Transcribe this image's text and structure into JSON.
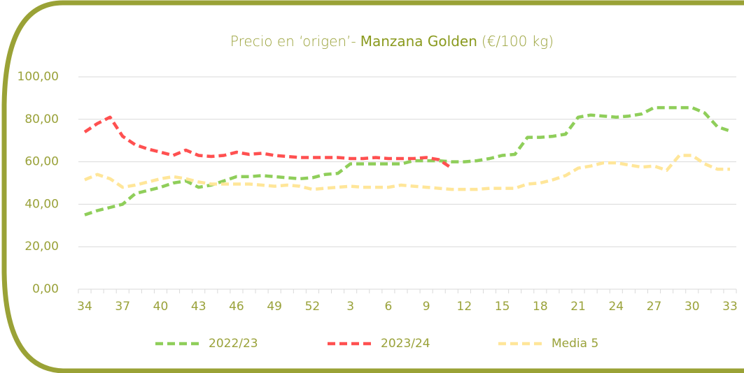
{
  "chart_data": {
    "type": "line",
    "title": [
      "Precio en ‘origen’-",
      "Manzana Golden",
      "(€/100 kg)"
    ],
    "categories": [
      "34",
      null,
      null,
      "37",
      null,
      null,
      "40",
      null,
      null,
      "43",
      null,
      null,
      "46",
      null,
      null,
      "49",
      null,
      null,
      "52",
      null,
      null,
      "3",
      null,
      null,
      "6",
      null,
      null,
      "9",
      null,
      null,
      "12",
      null,
      null,
      "15",
      null,
      null,
      "18",
      null,
      null,
      "21",
      null,
      null,
      "24",
      null,
      null,
      "27",
      null,
      null,
      "30",
      null,
      null,
      "33"
    ],
    "series": [
      {
        "name": "2022/23",
        "color": "#8fce5a",
        "values": [
          35,
          37,
          38.5,
          40,
          45,
          46.5,
          48,
          50,
          51,
          48,
          49,
          51,
          53,
          53,
          53.5,
          53,
          52.5,
          52,
          52.5,
          54,
          54.5,
          59,
          59,
          59,
          59,
          59,
          60.5,
          60.5,
          60.5,
          60,
          60,
          60.5,
          61.5,
          63,
          63.5,
          71.5,
          71.5,
          72,
          73,
          81,
          82,
          81.5,
          81,
          81.5,
          82.5,
          85.5,
          85.5,
          85.5,
          85.5,
          83,
          76.5,
          74.5
        ]
      },
      {
        "name": "2023/24",
        "color": "#ff5050",
        "values": [
          74,
          78,
          81,
          72,
          68,
          66,
          64.5,
          63,
          65.5,
          63,
          62.5,
          63,
          64.5,
          63.5,
          64,
          63,
          62.5,
          62,
          62,
          62,
          62,
          61.5,
          61.5,
          62,
          61.5,
          61.5,
          61.5,
          62,
          61,
          57,
          null,
          null,
          null,
          null,
          null,
          null,
          null,
          null,
          null,
          null,
          null,
          null,
          null,
          null,
          null,
          null,
          null,
          null,
          null,
          null,
          null,
          null
        ]
      },
      {
        "name": "Media 5",
        "color": "#ffe699",
        "values": [
          51.5,
          54,
          52,
          48,
          49,
          50.5,
          52,
          53,
          52,
          50.5,
          49.5,
          49.5,
          49.5,
          49.5,
          49,
          48.5,
          49,
          48.5,
          47,
          47.5,
          48,
          48.5,
          48,
          48,
          48,
          49,
          48.5,
          48,
          47.5,
          47,
          47,
          47,
          47.5,
          47.5,
          47.5,
          49.5,
          50,
          51.5,
          53.5,
          57,
          58,
          59.5,
          59.5,
          58.5,
          57.5,
          58,
          56,
          63,
          63,
          59,
          56.5,
          56.5
        ]
      }
    ],
    "ylim": [
      0,
      100
    ],
    "yticks": [
      {
        "value": 0,
        "label": "0,00"
      },
      {
        "value": 20,
        "label": "20,00"
      },
      {
        "value": 40,
        "label": "40,00"
      },
      {
        "value": 60,
        "label": "60,00"
      },
      {
        "value": 80,
        "label": "80,00"
      },
      {
        "value": 100,
        "label": "100,00"
      }
    ],
    "grid": true,
    "legend": "bottom"
  }
}
